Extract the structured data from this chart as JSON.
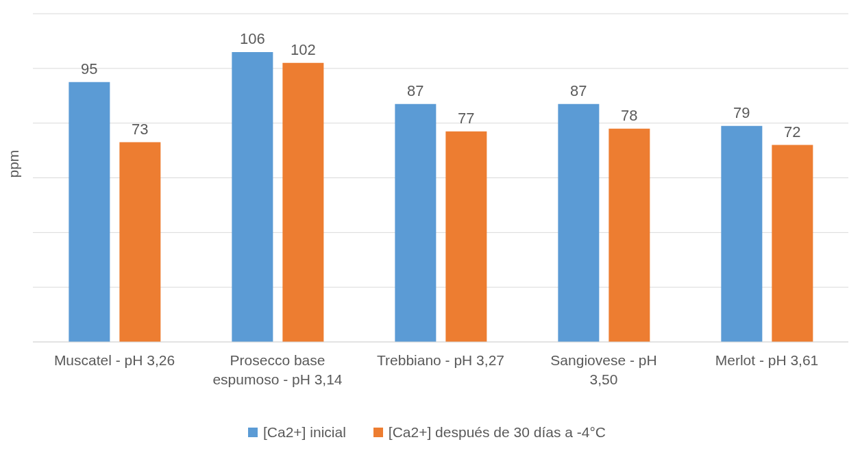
{
  "chart_data": {
    "type": "bar",
    "ylabel": "ppm",
    "categories": [
      "Muscatel - pH 3,26",
      "Prosecco base espumoso - pH 3,14",
      "Trebbiano - pH 3,27",
      "Sangiovese - pH 3,50",
      "Merlot - pH 3,61"
    ],
    "series": [
      {
        "name": "[Ca2+] inicial",
        "color": "#5b9bd5",
        "values": [
          95,
          106,
          87,
          87,
          79
        ]
      },
      {
        "name": "[Ca2+] después de 30 días a -4°C",
        "color": "#ed7d31",
        "values": [
          73,
          102,
          77,
          78,
          72
        ]
      }
    ],
    "ylim": [
      0,
      120
    ],
    "tick_labels": "x",
    "grid": "y",
    "legend": "bottom",
    "data_labels": true
  }
}
